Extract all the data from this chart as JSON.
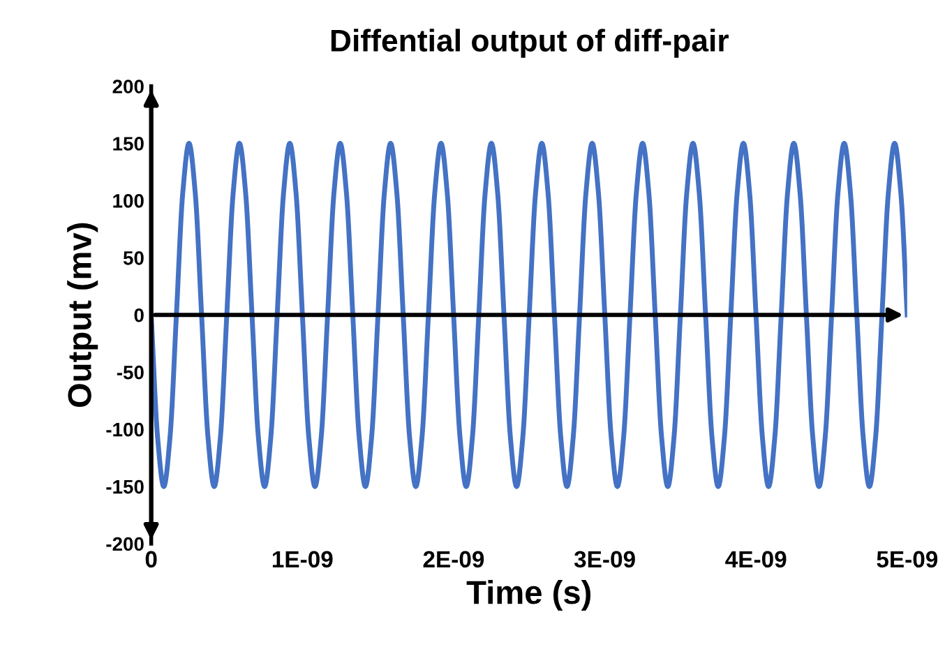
{
  "chart_data": {
    "type": "line",
    "title": "Diffential output of diff-pair",
    "xlabel": "Time (s)",
    "ylabel": "Output (mv)",
    "xlim": [
      0,
      5e-09
    ],
    "ylim": [
      -200,
      200
    ],
    "xticks": [
      0,
      {
        "value": 1e-09,
        "label": "1E-09"
      },
      {
        "value": 2e-09,
        "label": "2E-09"
      },
      {
        "value": 3e-09,
        "label": "3E-09"
      },
      {
        "value": 4e-09,
        "label": "4E-09"
      },
      {
        "value": 5e-09,
        "label": "5E-09"
      }
    ],
    "yticks": [
      -200,
      -150,
      -100,
      -50,
      0,
      50,
      100,
      150,
      200
    ],
    "grid": false,
    "legend": false,
    "marker": "none",
    "line_style": "solid",
    "series": [
      {
        "color": "#4472c4",
        "x": [
          0,
          4.167e-11,
          8.333e-11,
          1.25e-10,
          1.667e-10,
          2.083e-10,
          2.5e-10,
          2.917e-10,
          3.333e-10,
          3.75e-10,
          4.167e-10,
          4.583e-10,
          5e-10,
          5.417e-10,
          5.833e-10,
          6.25e-10,
          6.667e-10,
          7.083e-10,
          7.5e-10,
          7.917e-10,
          8.333e-10,
          8.75e-10,
          9.167e-10,
          9.583e-10,
          1e-09,
          1.0417e-09,
          1.0833e-09,
          1.125e-09,
          1.1667e-09,
          1.2083e-09,
          1.25e-09,
          1.2917e-09,
          1.3333e-09,
          1.375e-09,
          1.4167e-09,
          1.4583e-09,
          1.5e-09,
          1.5417e-09,
          1.5833e-09,
          1.625e-09,
          1.6667e-09,
          1.7083e-09,
          1.75e-09,
          1.7917e-09,
          1.8333e-09,
          1.875e-09,
          1.9167e-09,
          1.9583e-09,
          2e-09,
          2.0417e-09,
          2.0833e-09,
          2.125e-09,
          2.1667e-09,
          2.2083e-09,
          2.25e-09,
          2.2917e-09,
          2.3333e-09,
          2.375e-09,
          2.4167e-09,
          2.4583e-09,
          2.5e-09,
          2.5417e-09,
          2.5833e-09,
          2.625e-09,
          2.6667e-09,
          2.7083e-09,
          2.75e-09,
          2.7917e-09,
          2.8333e-09,
          2.875e-09,
          2.9167e-09,
          2.9583e-09,
          3e-09,
          3.0417e-09,
          3.0833e-09,
          3.125e-09,
          3.1667e-09,
          3.2083e-09,
          3.25e-09,
          3.2917e-09,
          3.3333e-09,
          3.375e-09,
          3.4167e-09,
          3.4583e-09,
          3.5e-09,
          3.5417e-09,
          3.5833e-09,
          3.625e-09,
          3.6667e-09,
          3.7083e-09,
          3.75e-09,
          3.7917e-09,
          3.8333e-09,
          3.875e-09,
          3.9167e-09,
          3.9583e-09,
          4e-09,
          4.0417e-09,
          4.0833e-09,
          4.125e-09,
          4.1667e-09,
          4.2083e-09,
          4.25e-09,
          4.2917e-09,
          4.3333e-09,
          4.375e-09,
          4.4167e-09,
          4.4583e-09,
          4.5e-09,
          4.5417e-09,
          4.5833e-09,
          4.625e-09,
          4.6667e-09,
          4.7083e-09,
          4.75e-09,
          4.7917e-09,
          4.8333e-09,
          4.875e-09,
          4.9167e-09,
          4.9583e-09,
          5e-09
        ],
        "values": [
          0,
          -106,
          -150,
          -106,
          0,
          106,
          150,
          106,
          0,
          -106,
          -150,
          -106,
          0,
          106,
          150,
          106,
          0,
          -106,
          -150,
          -106,
          0,
          106,
          150,
          106,
          0,
          -106,
          -150,
          -106,
          0,
          106,
          150,
          106,
          0,
          -106,
          -150,
          -106,
          0,
          106,
          150,
          106,
          0,
          -106,
          -150,
          -106,
          0,
          106,
          150,
          106,
          0,
          -106,
          -150,
          -106,
          0,
          106,
          150,
          106,
          0,
          -106,
          -150,
          -106,
          0,
          106,
          150,
          106,
          0,
          -106,
          -150,
          -106,
          0,
          106,
          150,
          106,
          0,
          -106,
          -150,
          -106,
          0,
          106,
          150,
          106,
          0,
          -106,
          -150,
          -106,
          0,
          106,
          150,
          106,
          0,
          -106,
          -150,
          -106,
          0,
          106,
          150,
          106,
          0,
          -106,
          -150,
          -106,
          0,
          106,
          150,
          106,
          0,
          -106,
          -150,
          -106,
          0,
          106,
          150,
          106,
          0,
          -106,
          -150,
          -106,
          0,
          106,
          150,
          106,
          0
        ]
      }
    ]
  }
}
